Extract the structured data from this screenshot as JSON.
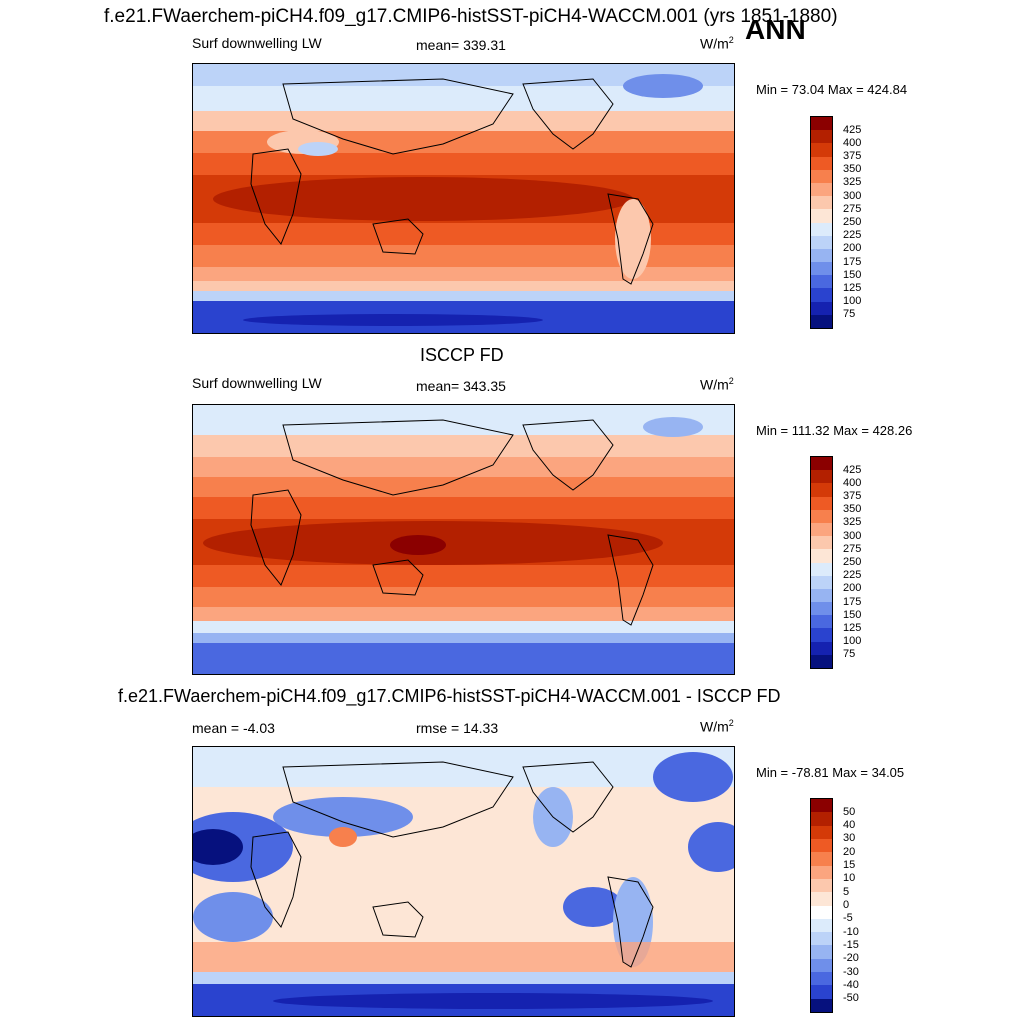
{
  "main_title": "f.e21.FWaerchem-piCH4.f09_g17.CMIP6-histSST-piCH4-WACCM.001 (yrs 1851-1880)",
  "season": "ANN",
  "panels": [
    {
      "id": "model",
      "variable": "Surf downwelling LW",
      "stat": "mean= 339.31",
      "units": "W/m",
      "units_sup": "2",
      "minmax": "Min =  73.04 Max = 424.84",
      "colorbar_ticks": [
        "425",
        "400",
        "375",
        "350",
        "325",
        "300",
        "275",
        "250",
        "225",
        "200",
        "175",
        "150",
        "125",
        "100",
        "75"
      ],
      "colors": [
        "#8b0000",
        "#b32000",
        "#d43a08",
        "#ee5a24",
        "#f7804d",
        "#fba57f",
        "#fcc8ad",
        "#fde6d6",
        "#dcebfb",
        "#bcd3f8",
        "#97b4f2",
        "#6f8fea",
        "#4a68e0",
        "#2a43cf",
        "#1522b0",
        "#06117e"
      ]
    },
    {
      "id": "obs",
      "subtitle": "ISCCP FD",
      "variable": "Surf downwelling LW",
      "stat": "mean= 343.35",
      "units": "W/m",
      "units_sup": "2",
      "minmax": "Min = 111.32 Max = 428.26",
      "colorbar_ticks": [
        "425",
        "400",
        "375",
        "350",
        "325",
        "300",
        "275",
        "250",
        "225",
        "200",
        "175",
        "150",
        "125",
        "100",
        "75"
      ],
      "colors": [
        "#8b0000",
        "#b32000",
        "#d43a08",
        "#ee5a24",
        "#f7804d",
        "#fba57f",
        "#fcc8ad",
        "#fde6d6",
        "#dcebfb",
        "#bcd3f8",
        "#97b4f2",
        "#6f8fea",
        "#4a68e0",
        "#2a43cf",
        "#1522b0",
        "#06117e"
      ]
    },
    {
      "id": "diff",
      "subtitle": "f.e21.FWaerchem-piCH4.f09_g17.CMIP6-histSST-piCH4-WACCM.001 - ISCCP FD",
      "stat_left": "mean =  -4.03",
      "stat": "rmse =  14.33",
      "units": "W/m",
      "units_sup": "2",
      "minmax": "Min = -78.81 Max =  34.05",
      "colorbar_ticks": [
        "50",
        "40",
        "30",
        "20",
        "15",
        "10",
        "5",
        "0",
        "-5",
        "-10",
        "-15",
        "-20",
        "-30",
        "-40",
        "-50"
      ],
      "colors": [
        "#8b0000",
        "#b32000",
        "#d43a08",
        "#ee5a24",
        "#f7804d",
        "#fba57f",
        "#fcc8ad",
        "#fde6d6",
        "#ffffff",
        "#dcebfb",
        "#bcd3f8",
        "#97b4f2",
        "#6f8fea",
        "#4a68e0",
        "#2a43cf",
        "#06117e"
      ]
    }
  ]
}
